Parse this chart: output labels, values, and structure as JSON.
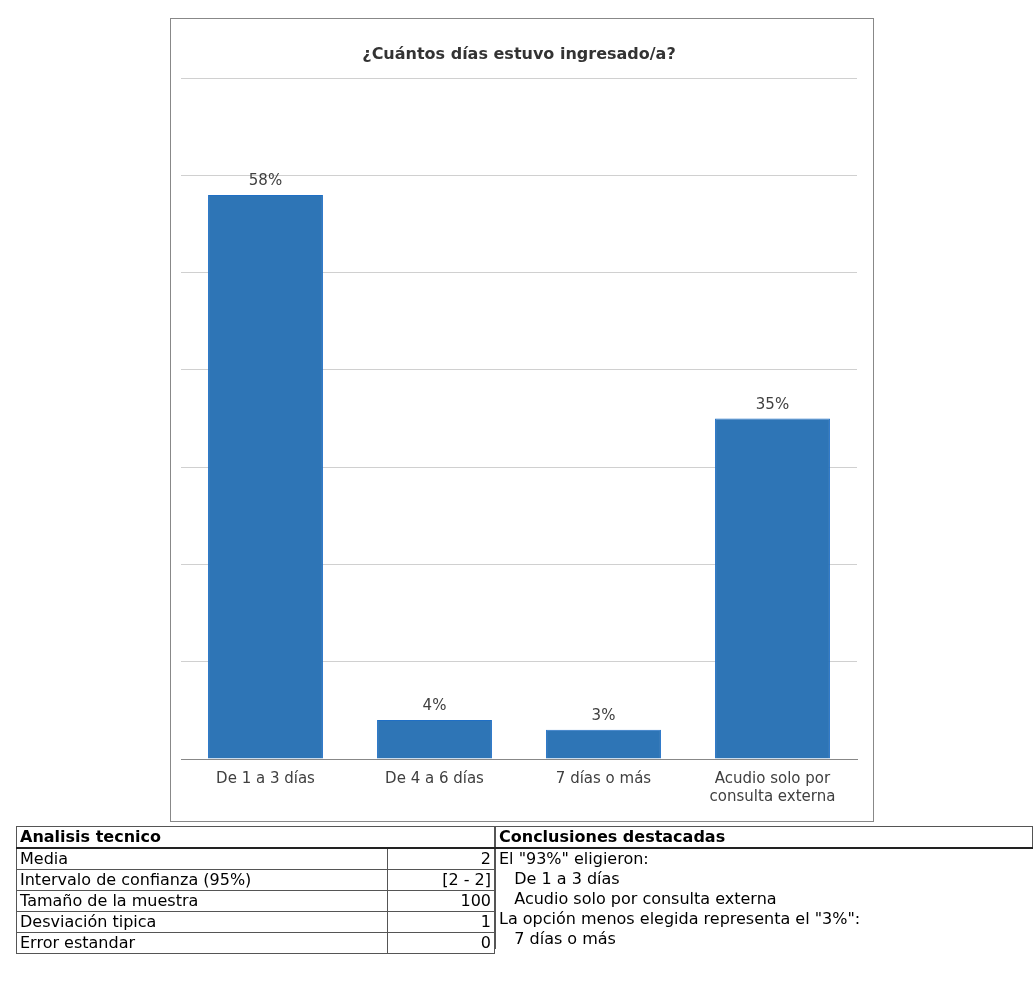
{
  "chart_data": [
    {
      "type": "bar",
      "title": "¿Cuántos días estuvo ingresado/a?",
      "categories": [
        "De 1 a 3 días",
        "De 4 a 6 días",
        "7 días o más",
        "Acudio solo por consulta externa"
      ],
      "values": [
        58,
        4,
        3,
        35
      ],
      "value_labels": [
        "58%",
        "4%",
        "3%",
        "35%"
      ],
      "color": "#2e75b6",
      "ylim": [
        0,
        70
      ],
      "yticks": [
        {
          "value": 0,
          "label": null
        },
        {
          "value": 10,
          "label": null
        },
        {
          "value": 20,
          "label": null
        },
        {
          "value": 30,
          "label": null
        },
        {
          "value": 40,
          "label": null
        },
        {
          "value": 50,
          "label": null
        },
        {
          "value": 60,
          "label": null
        },
        {
          "value": 70,
          "label": null
        }
      ],
      "grid": "y",
      "tick_labels": "x"
    },
    {
      "type": "other",
      "title": "Analisis tecnico",
      "categories": [
        "Media",
        "Intervalo de confianza (95%)",
        "Tamaño de la muestra",
        "Desviación tipica",
        "Error estandar"
      ],
      "value_labels": [
        "2",
        "[2 - 2]",
        "100",
        "1",
        "0"
      ]
    },
    {
      "type": "other",
      "title": "Conclusiones destacadas",
      "annotations": [
        "El \"93%\" eligieron:",
        "   De 1 a 3 días",
        "   Acudio solo por consulta externa",
        "La opción menos elegida representa el \"3%\":",
        "   7 días o más"
      ]
    }
  ]
}
